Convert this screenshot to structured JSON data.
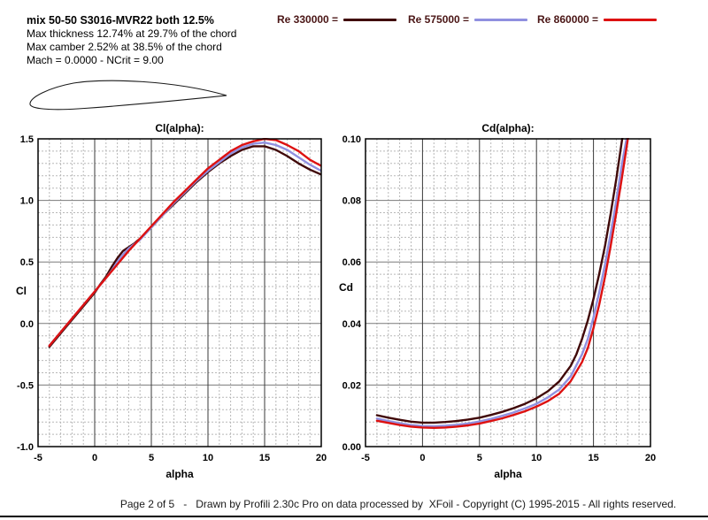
{
  "header": {
    "title": "mix 50-50 S3016-MVR22 both 12.5%",
    "line2": "Max thickness 12.74% at 29.7% of the chord",
    "line3": "Max camber 2.52% at 38.5% of the chord",
    "line4": "Mach = 0.0000 - NCrit = 9.00"
  },
  "legend": {
    "text_color": "#4a1515",
    "items": [
      {
        "label": "Re 330000 =",
        "color": "#400808"
      },
      {
        "label": "Re 575000 =",
        "color": "#9090e0"
      },
      {
        "label": "Re 860000 =",
        "color": "#dd1111"
      }
    ]
  },
  "airfoil": {
    "description": "thin airfoil profile outline drawing"
  },
  "colors": {
    "border": "#000000",
    "major_grid_vertical": "#3a3a3a",
    "major_grid_horizontal": "#7a7a7a",
    "minor_grid": "#b8b8b8"
  },
  "chart_data": [
    {
      "type": "line",
      "title": "Cl(alpha):",
      "xlabel": "alpha",
      "ylabel": "Cl",
      "xlim": [
        -5,
        20
      ],
      "ylim": [
        -1.0,
        1.5
      ],
      "x_ticks": [
        -5,
        0,
        5,
        10,
        15,
        20
      ],
      "x_tick_labels": [
        "-5",
        "0",
        "5",
        "10",
        "15",
        "20"
      ],
      "y_tick_values": [
        1.5,
        1.0,
        0.5,
        0.0,
        -0.5,
        -1.0
      ],
      "y_tick_labels": [
        "1.5",
        "1.0",
        "0.5",
        "0.0",
        "-0.5",
        "-1.0"
      ],
      "x_minor_step": 1,
      "y_minor_step": 0.1,
      "grid": true,
      "legend_position": "top-of-page",
      "series": [
        {
          "name": "Re 330000",
          "color": "#400808",
          "points": [
            [
              -4,
              -0.19
            ],
            [
              -3,
              -0.08
            ],
            [
              -2,
              0.03
            ],
            [
              -1,
              0.14
            ],
            [
              0,
              0.25
            ],
            [
              0.5,
              0.32
            ],
            [
              1,
              0.38
            ],
            [
              1.5,
              0.46
            ],
            [
              2,
              0.53
            ],
            [
              2.5,
              0.59
            ],
            [
              3,
              0.62
            ],
            [
              3.5,
              0.65
            ],
            [
              4,
              0.69
            ],
            [
              5,
              0.78
            ],
            [
              6,
              0.88
            ],
            [
              7,
              0.97
            ],
            [
              8,
              1.06
            ],
            [
              9,
              1.15
            ],
            [
              10,
              1.23
            ],
            [
              11,
              1.3
            ],
            [
              12,
              1.36
            ],
            [
              13,
              1.41
            ],
            [
              14,
              1.44
            ],
            [
              15,
              1.44
            ],
            [
              16,
              1.41
            ],
            [
              17,
              1.36
            ],
            [
              18,
              1.3
            ],
            [
              19,
              1.25
            ],
            [
              20,
              1.21
            ]
          ]
        },
        {
          "name": "Re 575000",
          "color": "#9090e0",
          "points": [
            [
              -4,
              -0.18
            ],
            [
              -3,
              -0.07
            ],
            [
              -2,
              0.04
            ],
            [
              -1,
              0.15
            ],
            [
              0,
              0.26
            ],
            [
              1,
              0.37
            ],
            [
              1.5,
              0.43
            ],
            [
              2,
              0.5
            ],
            [
              2.5,
              0.56
            ],
            [
              3,
              0.61
            ],
            [
              4,
              0.68
            ],
            [
              5,
              0.78
            ],
            [
              6,
              0.88
            ],
            [
              7,
              0.98
            ],
            [
              8,
              1.07
            ],
            [
              9,
              1.16
            ],
            [
              10,
              1.24
            ],
            [
              11,
              1.31
            ],
            [
              12,
              1.38
            ],
            [
              13,
              1.43
            ],
            [
              14,
              1.46
            ],
            [
              15,
              1.47
            ],
            [
              16,
              1.45
            ],
            [
              17,
              1.41
            ],
            [
              18,
              1.35
            ],
            [
              19,
              1.29
            ],
            [
              20,
              1.24
            ]
          ]
        },
        {
          "name": "Re 860000",
          "color": "#dd1111",
          "points": [
            [
              -4,
              -0.18
            ],
            [
              -3,
              -0.07
            ],
            [
              -2,
              0.04
            ],
            [
              -1,
              0.15
            ],
            [
              0,
              0.26
            ],
            [
              1,
              0.37
            ],
            [
              2,
              0.48
            ],
            [
              3,
              0.59
            ],
            [
              4,
              0.69
            ],
            [
              5,
              0.79
            ],
            [
              6,
              0.89
            ],
            [
              7,
              0.99
            ],
            [
              8,
              1.08
            ],
            [
              9,
              1.17
            ],
            [
              10,
              1.26
            ],
            [
              11,
              1.33
            ],
            [
              12,
              1.4
            ],
            [
              13,
              1.45
            ],
            [
              14,
              1.48
            ],
            [
              15,
              1.5
            ],
            [
              16,
              1.49
            ],
            [
              17,
              1.45
            ],
            [
              18,
              1.4
            ],
            [
              19,
              1.33
            ],
            [
              20,
              1.28
            ]
          ]
        }
      ]
    },
    {
      "type": "line",
      "title": "Cd(alpha):",
      "xlabel": "alpha",
      "ylabel": "Cd",
      "xlim": [
        -5,
        20
      ],
      "ylim": [
        0.0,
        0.1
      ],
      "x_ticks": [
        -5,
        0,
        5,
        10,
        15,
        20
      ],
      "x_tick_labels": [
        "-5",
        "0",
        "5",
        "10",
        "15",
        "20"
      ],
      "y_tick_values": [
        0.1,
        0.08,
        0.06,
        0.04,
        0.02,
        0.0
      ],
      "y_tick_labels": [
        "0.10",
        "0.08",
        "0.06",
        "0.04",
        "0.02",
        "0.00"
      ],
      "x_minor_step": 1,
      "y_minor_step": 0.004,
      "grid": true,
      "legend_position": "top-of-page",
      "series": [
        {
          "name": "Re 330000",
          "color": "#400808",
          "points": [
            [
              -4,
              0.0102
            ],
            [
              -3,
              0.0094
            ],
            [
              -2,
              0.0087
            ],
            [
              -1,
              0.0081
            ],
            [
              0,
              0.0078
            ],
            [
              1,
              0.0078
            ],
            [
              2,
              0.008
            ],
            [
              3,
              0.0083
            ],
            [
              4,
              0.0088
            ],
            [
              5,
              0.0094
            ],
            [
              6,
              0.0103
            ],
            [
              7,
              0.0113
            ],
            [
              8,
              0.0125
            ],
            [
              9,
              0.0139
            ],
            [
              10,
              0.0157
            ],
            [
              11,
              0.018
            ],
            [
              12,
              0.0212
            ],
            [
              13,
              0.0262
            ],
            [
              13.5,
              0.03
            ],
            [
              14,
              0.035
            ],
            [
              14.5,
              0.041
            ],
            [
              15,
              0.048
            ],
            [
              15.5,
              0.056
            ],
            [
              16,
              0.065
            ],
            [
              16.5,
              0.0755
            ],
            [
              17,
              0.087
            ],
            [
              17.5,
              0.0995
            ],
            [
              17.6,
              0.102
            ]
          ]
        },
        {
          "name": "Re 575000",
          "color": "#9090e0",
          "points": [
            [
              -4,
              0.0091
            ],
            [
              -3,
              0.0083
            ],
            [
              -2,
              0.0076
            ],
            [
              -1,
              0.007
            ],
            [
              0,
              0.0067
            ],
            [
              1,
              0.0066
            ],
            [
              2,
              0.0068
            ],
            [
              3,
              0.0071
            ],
            [
              4,
              0.0075
            ],
            [
              5,
              0.0082
            ],
            [
              6,
              0.009
            ],
            [
              7,
              0.01
            ],
            [
              8,
              0.0111
            ],
            [
              9,
              0.0124
            ],
            [
              10,
              0.0139
            ],
            [
              11,
              0.016
            ],
            [
              12,
              0.0186
            ],
            [
              13,
              0.0228
            ],
            [
              14,
              0.03
            ],
            [
              14.5,
              0.035
            ],
            [
              15,
              0.042
            ],
            [
              15.5,
              0.05
            ],
            [
              16,
              0.059
            ],
            [
              16.5,
              0.069
            ],
            [
              17,
              0.08
            ],
            [
              17.5,
              0.092
            ],
            [
              18,
              0.102
            ]
          ]
        },
        {
          "name": "Re 860000",
          "color": "#dd1111",
          "points": [
            [
              -4,
              0.0084
            ],
            [
              -3,
              0.0077
            ],
            [
              -2,
              0.007
            ],
            [
              -1,
              0.0065
            ],
            [
              0,
              0.0062
            ],
            [
              1,
              0.0061
            ],
            [
              2,
              0.0062
            ],
            [
              3,
              0.0065
            ],
            [
              4,
              0.0069
            ],
            [
              5,
              0.0075
            ],
            [
              6,
              0.0083
            ],
            [
              7,
              0.0092
            ],
            [
              8,
              0.0103
            ],
            [
              9,
              0.0115
            ],
            [
              10,
              0.013
            ],
            [
              11,
              0.0148
            ],
            [
              12,
              0.0172
            ],
            [
              13,
              0.0212
            ],
            [
              14,
              0.0275
            ],
            [
              14.5,
              0.032
            ],
            [
              15,
              0.0385
            ],
            [
              15.5,
              0.046
            ],
            [
              16,
              0.055
            ],
            [
              16.5,
              0.065
            ],
            [
              17,
              0.076
            ],
            [
              17.5,
              0.0875
            ],
            [
              18,
              0.0995
            ],
            [
              18.1,
              0.102
            ]
          ]
        }
      ]
    }
  ],
  "footer": {
    "text": "Page 2 of 5   -   Drawn by Profili 2.30c Pro on data processed by  XFoil - Copyright (C) 1995-2015 - All rights reserved."
  }
}
